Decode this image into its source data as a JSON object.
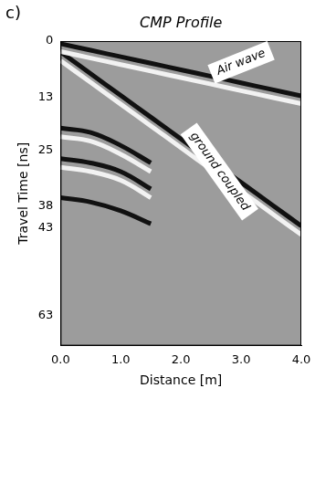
{
  "chart_data": {
    "type": "line",
    "panel_label": "c)",
    "title": "CMP Profile",
    "x_label": "Distance [m]",
    "y_label": "Travel Time [ns]",
    "x": [
      0,
      0.5,
      1,
      1.5,
      2,
      2.5,
      3,
      3.5,
      4
    ],
    "series": [
      {
        "color": "#111111",
        "values": [
          0.6,
          2.1,
          3.6,
          5.1,
          6.6,
          8.1,
          9.6,
          11.1,
          12.6
        ]
      },
      {
        "color": "#f2f2f2",
        "values": [
          2.4,
          3.9,
          5.4,
          6.9,
          8.4,
          9.9,
          11.4,
          12.9,
          14.4
        ]
      },
      {
        "color": "#111111",
        "values": [
          2.5,
          7.5,
          12.5,
          17.5,
          22.5,
          27.5,
          32.5,
          37.5,
          42.5
        ]
      },
      {
        "color": "#f2f2f2",
        "values": [
          4.5,
          9.5,
          14.5,
          19.5,
          24.5,
          29.5,
          34.5,
          39.5,
          44.5
        ]
      },
      {
        "color": "#111111",
        "values": [
          20,
          21,
          24,
          28,
          null,
          null,
          null,
          null,
          null
        ]
      },
      {
        "color": "#f2f2f2",
        "values": [
          22,
          23,
          26,
          30,
          null,
          null,
          null,
          null,
          null
        ]
      },
      {
        "color": "#111111",
        "values": [
          27,
          28,
          30,
          34,
          null,
          null,
          null,
          null,
          null
        ]
      },
      {
        "color": "#f2f2f2",
        "values": [
          29,
          30,
          32,
          36,
          null,
          null,
          null,
          null,
          null
        ]
      },
      {
        "color": "#111111",
        "values": [
          36,
          37,
          39,
          42,
          null,
          null,
          null,
          null,
          null
        ]
      }
    ],
    "xlim": [
      0,
      4
    ],
    "xticks": [
      {
        "value": 0,
        "label": "0.0"
      },
      {
        "value": 1,
        "label": "1.0"
      },
      {
        "value": 2,
        "label": "2.0"
      },
      {
        "value": 3,
        "label": "3.0"
      },
      {
        "value": 4,
        "label": "4.0"
      }
    ],
    "ylim": [
      0,
      70
    ],
    "yticks": [
      0,
      13,
      25,
      38,
      43,
      63
    ],
    "grid": false,
    "annotations": [
      {
        "text": "Air wave",
        "x": 3.0,
        "y": 4.9
      },
      {
        "text": "ground coupled",
        "x": 2.64,
        "y": 30
      }
    ]
  }
}
